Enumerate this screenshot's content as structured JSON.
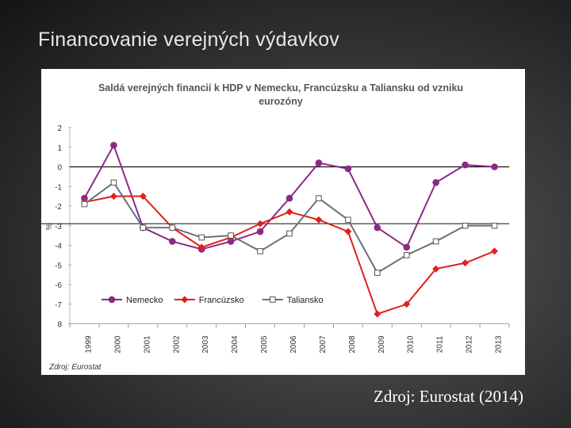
{
  "slide": {
    "title": "Financovanie verejných výdavkov",
    "source": "Zdroj: Eurostat (2014)"
  },
  "colors": {
    "nemecko": "#8a2a86",
    "francuzsko": "#e0201b",
    "taliansko": "#6a6f80"
  },
  "chart_data": {
    "type": "line",
    "title": "Saldá verejných financií k HDP v Nemecku, Francúzsku a Taliansku od vzniku eurozóny",
    "ylabel": "%",
    "xlabel": "",
    "ylim": [
      -8,
      2
    ],
    "yticks": [
      2,
      1,
      0,
      -1,
      -2,
      -3,
      -4,
      -5,
      -6,
      -7,
      8
    ],
    "reference_line": -2.9,
    "legend_position": "bottom-inside",
    "source_note": "Zdroj: Eurostat",
    "categories": [
      "1999",
      "2000",
      "2001",
      "2002",
      "2003",
      "2004",
      "2005",
      "2006",
      "2007",
      "2008",
      "2009",
      "2010",
      "2011",
      "2012",
      "2013"
    ],
    "series": [
      {
        "name": "Nemecko",
        "marker": "circle",
        "values": [
          -1.6,
          1.1,
          -3.1,
          -3.8,
          -4.2,
          -3.8,
          -3.3,
          -1.6,
          0.2,
          -0.1,
          -3.1,
          -4.1,
          -0.8,
          0.1,
          0.0
        ]
      },
      {
        "name": "Francúzsko",
        "marker": "diamond",
        "values": [
          -1.8,
          -1.5,
          -1.5,
          -3.1,
          -4.1,
          -3.6,
          -2.9,
          -2.3,
          -2.7,
          -3.3,
          -7.5,
          -7.0,
          -5.2,
          -4.9,
          -4.3
        ]
      },
      {
        "name": "Taliansko",
        "marker": "square",
        "values": [
          -1.9,
          -0.8,
          -3.1,
          -3.1,
          -3.6,
          -3.5,
          -4.3,
          -3.4,
          -1.6,
          -2.7,
          -5.4,
          -4.5,
          -3.8,
          -3.0,
          -3.0
        ]
      }
    ]
  }
}
